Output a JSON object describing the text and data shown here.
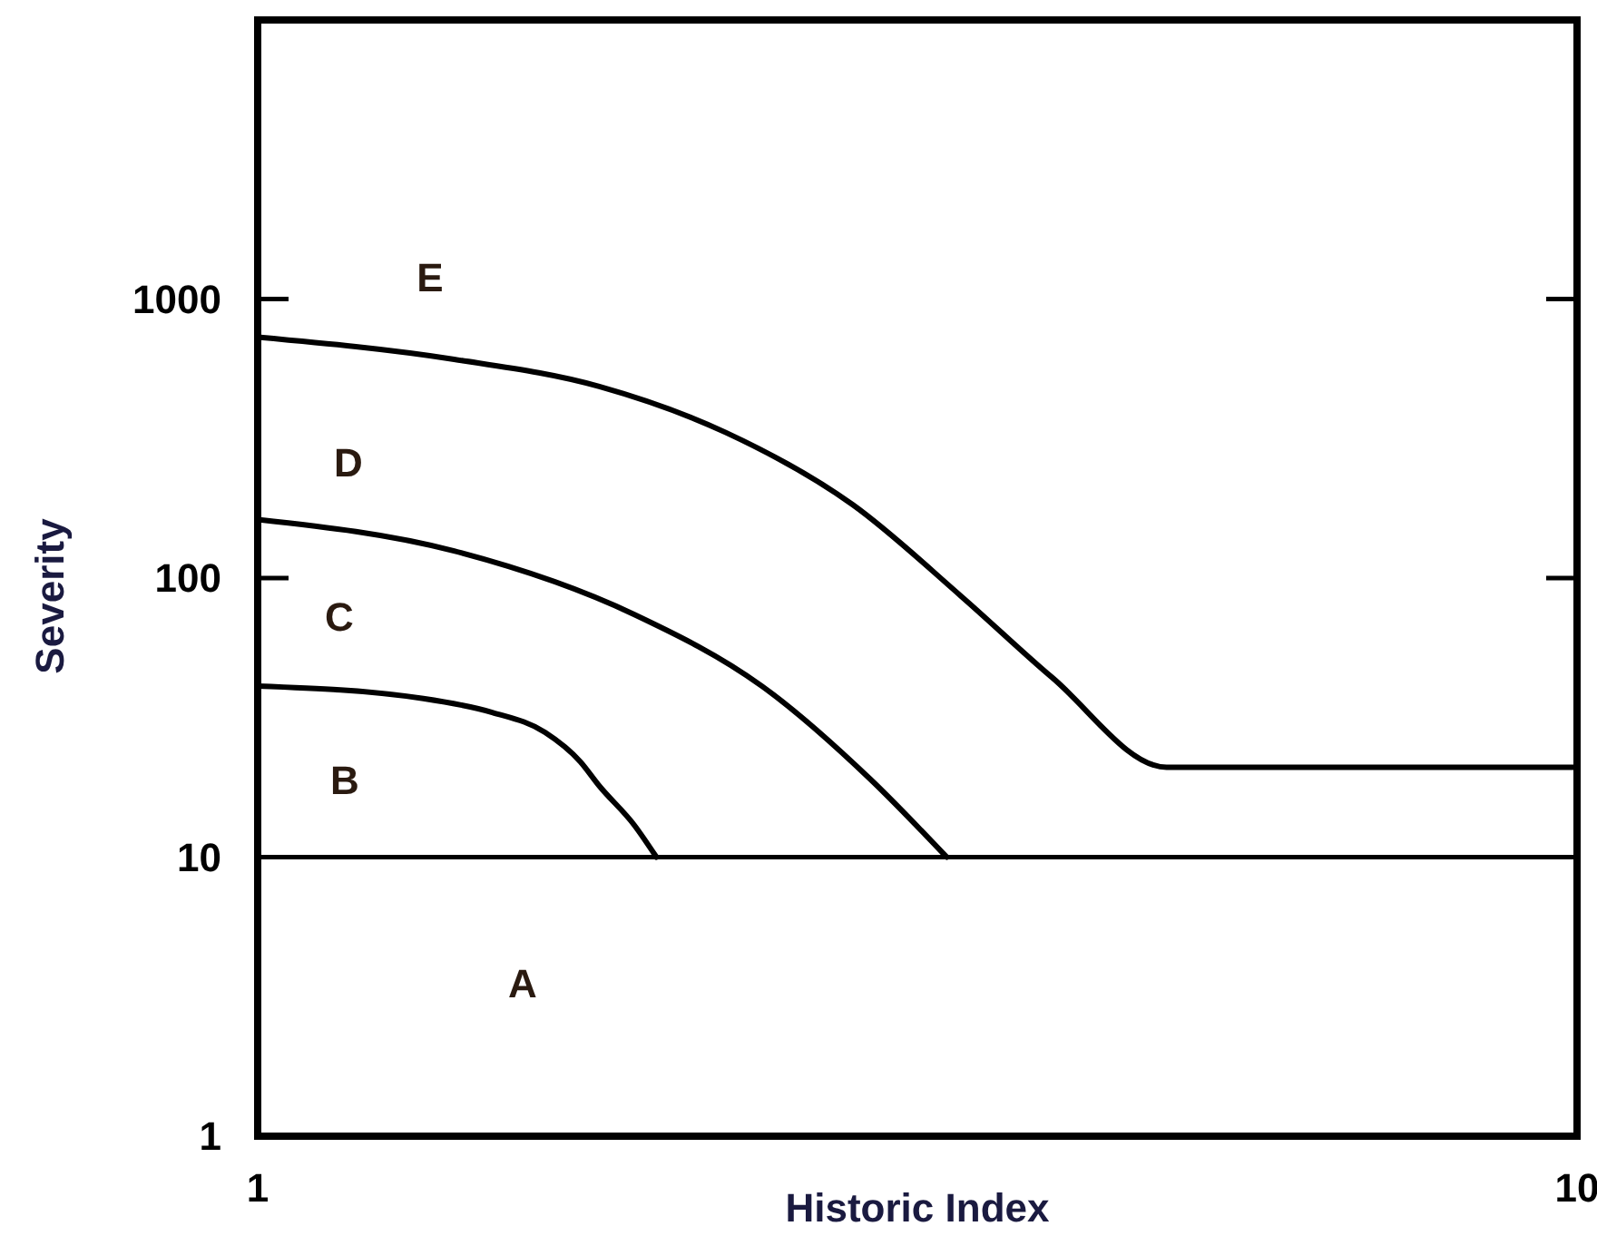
{
  "chart_data": {
    "type": "line",
    "xlabel": "Historic Index",
    "ylabel": "Severity",
    "log": "y",
    "xlim": [
      1,
      10
    ],
    "ylim": [
      1,
      10000
    ],
    "xticks": [
      1,
      10
    ],
    "yticks": [
      1,
      10,
      100,
      1000
    ],
    "grid": false,
    "marker": "none",
    "line_style": "solid",
    "series": [
      {
        "color": "#000000",
        "x": [
          1,
          2.13,
          2.6,
          2.96,
          3.2,
          3.33,
          3.57,
          3.72
        ],
        "values": [
          41,
          37,
          33,
          28,
          22,
          18,
          13,
          10
        ]
      },
      {
        "color": "#000000",
        "x": [
          1,
          2.34,
          3.57,
          4.44,
          5.18,
          5.7
        ],
        "values": [
          162,
          125,
          74,
          41,
          19,
          10
        ]
      },
      {
        "color": "#000000",
        "x": [
          1,
          2.34,
          3.33,
          4.19,
          5.06,
          5.8,
          6.42,
          7.2,
          10
        ],
        "values": [
          730,
          608,
          486,
          333,
          183,
          86,
          44,
          21,
          21
        ]
      }
    ],
    "ref_lines": [
      {
        "axis": "y",
        "value": 10,
        "color": "#000000"
      }
    ],
    "annotations": [
      "E",
      "D",
      "C",
      "B",
      "A"
    ]
  }
}
